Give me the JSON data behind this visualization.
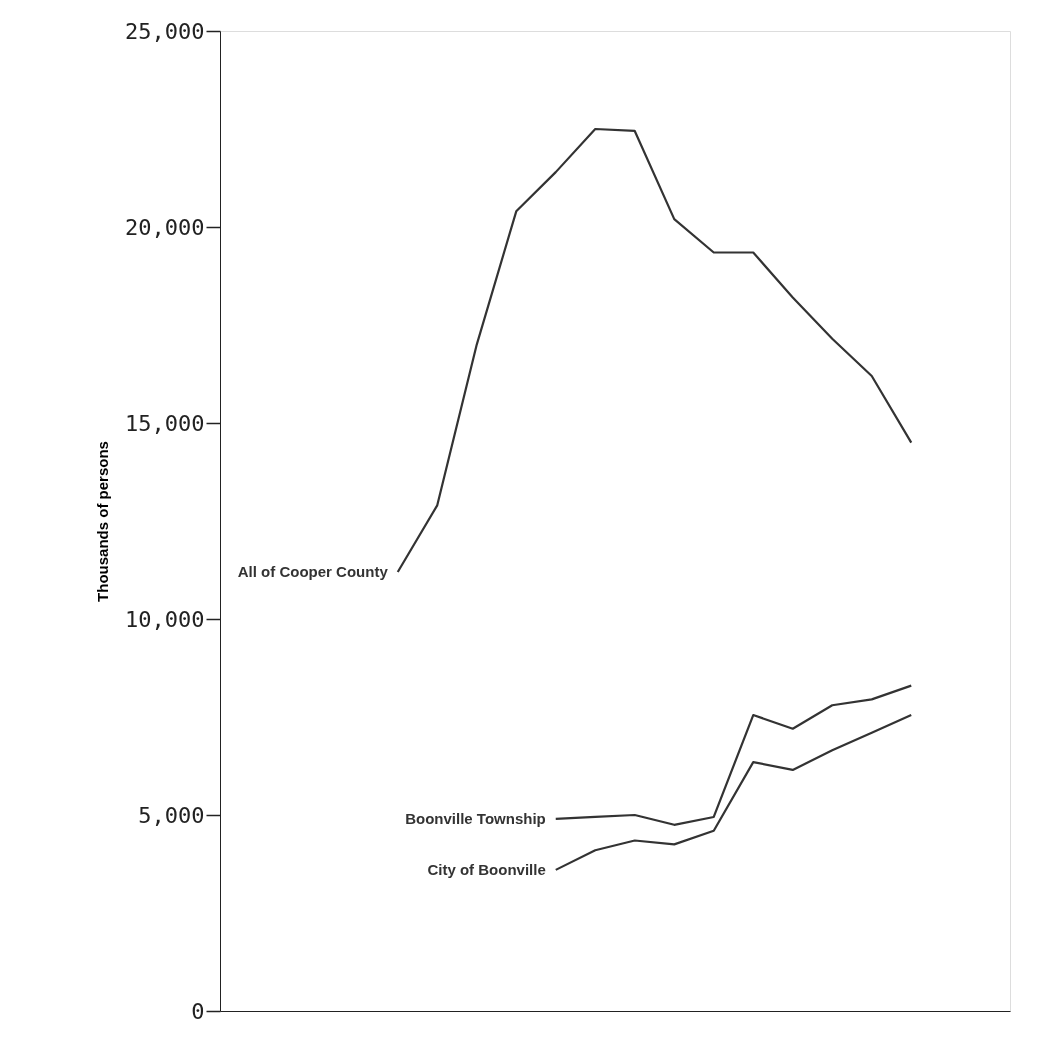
{
  "chart_data": {
    "type": "line",
    "ylabel": "Thousands of persons",
    "categories": [
      null,
      null,
      null,
      null,
      null,
      null,
      null,
      null,
      null,
      null,
      null,
      null,
      null,
      null,
      null,
      null,
      null,
      null,
      null,
      null
    ],
    "series": [
      {
        "name": "All of Cooper County",
        "color": "#333333",
        "values": [
          null,
          null,
          null,
          null,
          11200,
          12900,
          17000,
          20400,
          21400,
          22500,
          22450,
          20200,
          19350,
          19350,
          18200,
          17150,
          16200,
          14500,
          null,
          null
        ]
      },
      {
        "name": "Boonville Township",
        "color": "#333333",
        "values": [
          null,
          null,
          null,
          null,
          null,
          null,
          null,
          null,
          4900,
          4950,
          5000,
          4750,
          4950,
          7550,
          7200,
          7800,
          7950,
          8300,
          null,
          null
        ]
      },
      {
        "name": "City of Boonville",
        "color": "#333333",
        "values": [
          null,
          null,
          null,
          null,
          null,
          null,
          null,
          null,
          3600,
          4100,
          4350,
          4250,
          4600,
          6350,
          6150,
          6650,
          7100,
          7550,
          null,
          null
        ]
      }
    ],
    "ylim": [
      0,
      25000
    ],
    "yticks": [
      0,
      {
        "value": 5000,
        "label": "5,000"
      },
      {
        "value": 10000,
        "label": "10,000"
      },
      {
        "value": 15000,
        "label": "15,000"
      },
      {
        "value": 20000,
        "label": "20,000"
      },
      {
        "value": 25000,
        "label": "25,000"
      }
    ],
    "tick_labels": "y",
    "grid": false,
    "marker": "none",
    "line_style": "solid"
  }
}
